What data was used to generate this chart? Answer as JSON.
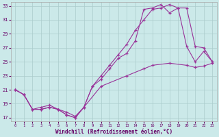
{
  "xlabel": "Windchill (Refroidissement éolien,°C)",
  "background_color": "#cbe9e9",
  "grid_color": "#aacccc",
  "line_color": "#993399",
  "xlim": [
    -0.5,
    23.5
  ],
  "ylim": [
    16.5,
    33.5
  ],
  "yticks": [
    17,
    19,
    21,
    23,
    25,
    27,
    29,
    31,
    33
  ],
  "xticks": [
    0,
    1,
    2,
    3,
    4,
    5,
    6,
    7,
    8,
    9,
    10,
    11,
    12,
    13,
    14,
    15,
    16,
    17,
    18,
    19,
    20,
    21,
    22,
    23
  ],
  "line1_x": [
    0,
    1,
    2,
    3,
    4,
    5,
    6,
    7,
    8,
    9,
    10,
    11,
    12,
    13,
    14,
    15,
    16,
    17,
    18,
    19,
    20,
    21,
    22,
    23
  ],
  "line1_y": [
    21.0,
    20.3,
    18.2,
    18.2,
    18.5,
    18.2,
    17.4,
    17.0,
    18.5,
    21.5,
    23.0,
    24.5,
    26.0,
    27.5,
    29.5,
    31.0,
    32.5,
    32.7,
    33.2,
    32.7,
    32.7,
    27.2,
    27.0,
    25.0
  ],
  "line2_x": [
    0,
    1,
    2,
    3,
    4,
    5,
    6,
    7,
    8,
    9,
    10,
    11,
    12,
    13,
    14,
    15,
    16,
    17,
    18,
    19,
    20,
    21,
    22,
    23
  ],
  "line2_y": [
    21.0,
    20.3,
    18.2,
    18.2,
    18.5,
    18.2,
    17.4,
    17.0,
    18.5,
    21.5,
    22.5,
    24.0,
    25.5,
    26.2,
    28.0,
    32.5,
    32.7,
    33.2,
    32.0,
    32.7,
    27.2,
    25.0,
    26.5,
    25.0
  ],
  "line3_x": [
    0,
    1,
    2,
    3,
    4,
    5,
    6,
    7,
    8,
    10,
    13,
    15,
    16,
    18,
    20,
    21,
    22,
    23
  ],
  "line3_y": [
    21.0,
    20.3,
    18.2,
    18.5,
    18.8,
    18.2,
    17.8,
    17.2,
    18.5,
    21.5,
    23.0,
    24.0,
    24.5,
    24.8,
    24.5,
    24.2,
    24.4,
    24.8
  ]
}
